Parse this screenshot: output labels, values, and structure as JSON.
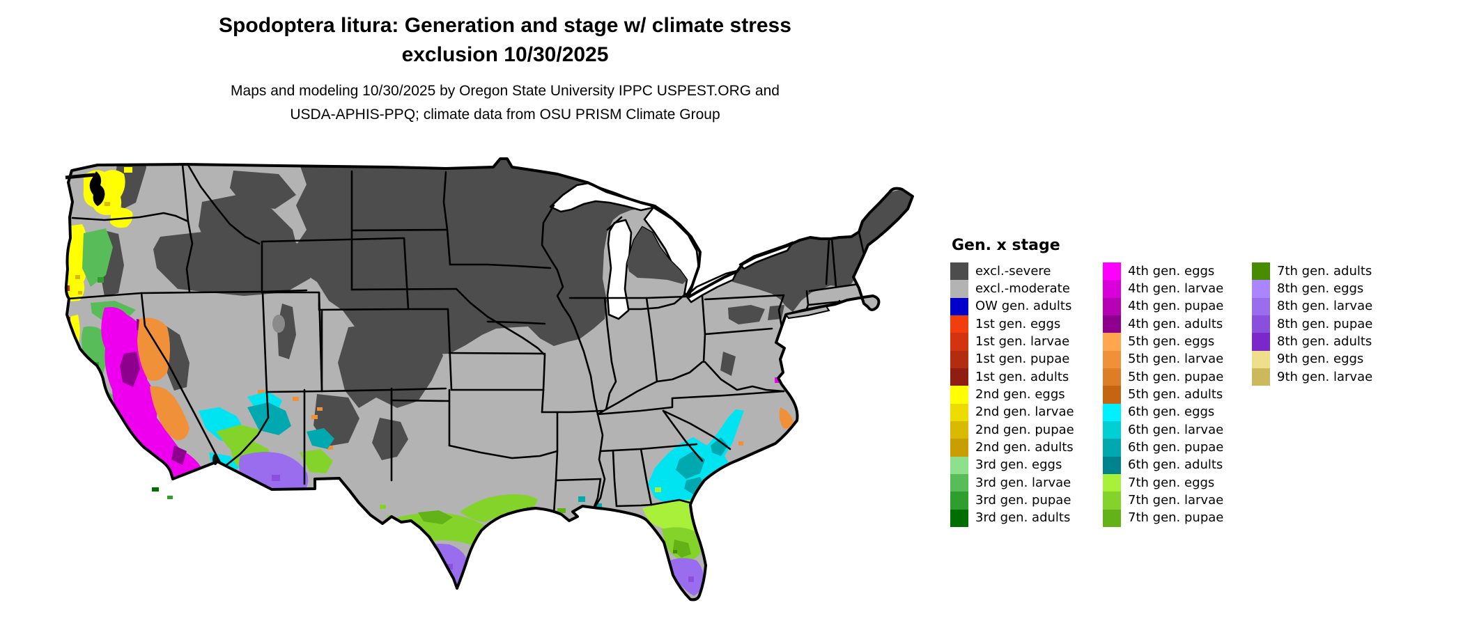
{
  "header": {
    "title_line1": "Spodoptera litura: Generation and stage w/ climate stress",
    "title_line2": "exclusion 10/30/2025",
    "subtitle_line1": "Maps and modeling 10/30/2025 by Oregon State University IPPC USPEST.ORG and",
    "subtitle_line2": "USDA-APHIS-PPQ; climate data from OSU PRISM Climate Group"
  },
  "map": {
    "kind": "choropleth map of the contiguous United States",
    "base_land_color": "#b3b3b3",
    "state_border_color": "#000000",
    "water_color": "#ffffff"
  },
  "legend": {
    "title": "Gen. x stage",
    "columns": [
      [
        {
          "label": "excl.-severe",
          "color": "#4d4d4d"
        },
        {
          "label": "excl.-moderate",
          "color": "#b3b3b3"
        },
        {
          "label": "OW gen. adults",
          "color": "#0000cc"
        },
        {
          "label": "1st gen. eggs",
          "color": "#f23d0d"
        },
        {
          "label": "1st gen. larvae",
          "color": "#d43310"
        },
        {
          "label": "1st gen. pupae",
          "color": "#b32c10"
        },
        {
          "label": "1st gen. adults",
          "color": "#8f1d12"
        },
        {
          "label": "2nd gen. eggs",
          "color": "#ffff00"
        },
        {
          "label": "2nd gen. larvae",
          "color": "#ecdc00"
        },
        {
          "label": "2nd gen. pupae",
          "color": "#d9ba00"
        },
        {
          "label": "2nd gen. adults",
          "color": "#c79d00"
        },
        {
          "label": "3rd gen. eggs",
          "color": "#8ee08e"
        },
        {
          "label": "3rd gen. larvae",
          "color": "#58bc58"
        },
        {
          "label": "3rd gen. pupae",
          "color": "#2e9e2e"
        },
        {
          "label": "3rd gen. adults",
          "color": "#006e00"
        }
      ],
      [
        {
          "label": "4th gen. eggs",
          "color": "#ff00ff"
        },
        {
          "label": "4th gen. larvae",
          "color": "#d900d9"
        },
        {
          "label": "4th gen. pupae",
          "color": "#b500b5"
        },
        {
          "label": "4th gen. adults",
          "color": "#8d008d"
        },
        {
          "label": "5th gen. eggs",
          "color": "#ffa64f"
        },
        {
          "label": "5th gen. larvae",
          "color": "#f0913a"
        },
        {
          "label": "5th gen. pupae",
          "color": "#dd7d26"
        },
        {
          "label": "5th gen. adults",
          "color": "#c66511"
        },
        {
          "label": "6th gen. eggs",
          "color": "#00f0ff"
        },
        {
          "label": "6th gen. larvae",
          "color": "#00cfd4"
        },
        {
          "label": "6th gen. pupae",
          "color": "#00a9b0"
        },
        {
          "label": "6th gen. adults",
          "color": "#00838c"
        },
        {
          "label": "7th gen. eggs",
          "color": "#a8f03a"
        },
        {
          "label": "7th gen. larvae",
          "color": "#84d32a"
        },
        {
          "label": "7th gen. pupae",
          "color": "#63b318"
        }
      ],
      [
        {
          "label": "7th gen. adults",
          "color": "#478c00"
        },
        {
          "label": "8th gen. eggs",
          "color": "#ab85ff"
        },
        {
          "label": "8th gen. larvae",
          "color": "#9a6cee"
        },
        {
          "label": "8th gen. pupae",
          "color": "#8a4fdd"
        },
        {
          "label": "8th gen. adults",
          "color": "#7a28cc"
        },
        {
          "label": "9th gen. eggs",
          "color": "#efdf8b"
        },
        {
          "label": "9th gen. larvae",
          "color": "#cdb85e"
        }
      ]
    ]
  }
}
